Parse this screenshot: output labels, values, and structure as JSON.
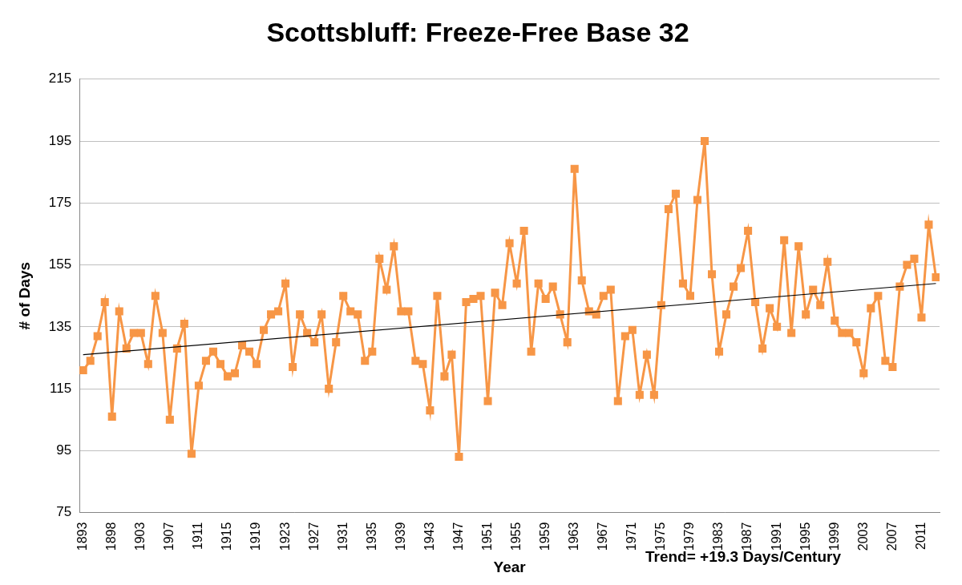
{
  "chart_data": {
    "type": "line",
    "title": "Scottsbluff: Freeze-Free Base 32",
    "x_label": "Year",
    "y_label": "# of Days",
    "annotation": "Trend= +19.3 Days/Century",
    "categories": [
      "1893",
      null,
      null,
      null,
      "1898",
      null,
      null,
      null,
      "1903",
      null,
      null,
      null,
      "1907",
      null,
      null,
      null,
      "1911",
      null,
      null,
      null,
      "1915",
      null,
      null,
      null,
      "1919",
      null,
      null,
      null,
      "1923",
      null,
      null,
      null,
      "1927",
      null,
      null,
      null,
      "1931",
      null,
      null,
      null,
      "1935",
      null,
      null,
      null,
      "1939",
      null,
      null,
      null,
      "1943",
      null,
      null,
      null,
      "1947",
      null,
      null,
      null,
      "1951",
      null,
      null,
      null,
      "1955",
      null,
      null,
      null,
      "1959",
      null,
      null,
      null,
      "1963",
      null,
      null,
      null,
      "1967",
      null,
      null,
      null,
      "1971",
      null,
      null,
      null,
      "1975",
      null,
      null,
      null,
      "1979",
      null,
      null,
      null,
      "1983",
      null,
      null,
      null,
      "1987",
      null,
      null,
      null,
      "1991",
      null,
      null,
      null,
      "1995",
      null,
      null,
      null,
      "1999",
      null,
      null,
      null,
      "2003",
      null,
      null,
      null,
      "2007",
      null,
      null,
      null,
      "2011",
      null,
      null
    ],
    "series": [
      {
        "color": "#f79646",
        "marker": "square",
        "line_style": "solid",
        "values": [
          121,
          124,
          132,
          143,
          106,
          140,
          128,
          133,
          133,
          123,
          145,
          133,
          105,
          128,
          136,
          94,
          116,
          124,
          127,
          123,
          119,
          120,
          129,
          127,
          123,
          134,
          139,
          140,
          149,
          122,
          139,
          133,
          130,
          139,
          115,
          130,
          145,
          140,
          139,
          124,
          127,
          157,
          147,
          161,
          140,
          140,
          124,
          123,
          108,
          145,
          119,
          126,
          93,
          143,
          144,
          145,
          111,
          146,
          142,
          162,
          149,
          166,
          127,
          149,
          144,
          148,
          139,
          130,
          186,
          150,
          140,
          139,
          145,
          147,
          111,
          132,
          134,
          113,
          126,
          113,
          142,
          173,
          178,
          149,
          145,
          176,
          195,
          152,
          127,
          139,
          148,
          154,
          166,
          143,
          128,
          141,
          135,
          163,
          133,
          161,
          139,
          147,
          142,
          156,
          137,
          133,
          133,
          130,
          120,
          141,
          145,
          124,
          122,
          148,
          155,
          157,
          138,
          168,
          151
        ]
      },
      {
        "color": "#000000",
        "marker": "none",
        "line_style": "solid",
        "values": [
          126,
          null,
          null,
          null,
          null,
          null,
          null,
          null,
          null,
          null,
          null,
          null,
          null,
          null,
          null,
          null,
          null,
          null,
          null,
          null,
          null,
          null,
          null,
          null,
          null,
          null,
          null,
          null,
          null,
          null,
          null,
          null,
          null,
          null,
          null,
          null,
          null,
          null,
          null,
          null,
          null,
          null,
          null,
          null,
          null,
          null,
          null,
          null,
          null,
          null,
          null,
          null,
          null,
          null,
          null,
          null,
          null,
          null,
          null,
          null,
          null,
          null,
          null,
          null,
          null,
          null,
          null,
          null,
          null,
          null,
          null,
          null,
          null,
          null,
          null,
          null,
          null,
          null,
          null,
          null,
          null,
          null,
          null,
          null,
          null,
          null,
          null,
          null,
          null,
          null,
          null,
          null,
          null,
          null,
          null,
          null,
          null,
          null,
          null,
          null,
          null,
          null,
          null,
          null,
          null,
          null,
          null,
          null,
          null,
          null,
          null,
          null,
          null,
          null,
          null,
          null,
          null,
          null,
          149
        ]
      }
    ],
    "ylim": [
      75,
      215
    ],
    "yticks": [
      75,
      95,
      115,
      135,
      155,
      175,
      195,
      215
    ],
    "grid": true
  }
}
